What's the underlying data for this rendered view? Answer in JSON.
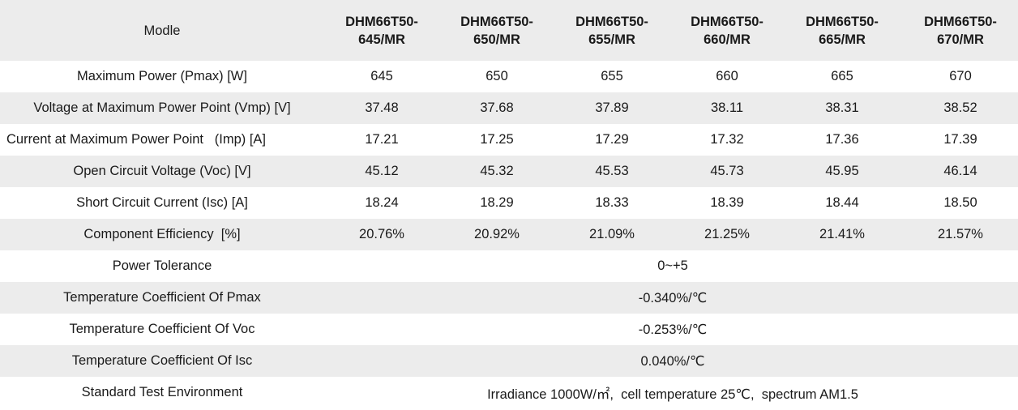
{
  "header": {
    "label": "Modle",
    "models": [
      {
        "line1": "DHM66T50-",
        "line2": "645/MR"
      },
      {
        "line1": "DHM66T50-",
        "line2": "650/MR"
      },
      {
        "line1": "DHM66T50-",
        "line2": "655/MR"
      },
      {
        "line1": "DHM66T50-",
        "line2": "660/MR"
      },
      {
        "line1": "DHM66T50-",
        "line2": "665/MR"
      },
      {
        "line1": "DHM66T50-",
        "line2": "670/MR"
      }
    ]
  },
  "rows": [
    {
      "label": "Maximum Power (Pmax) [W]",
      "values": [
        "645",
        "650",
        "655",
        "660",
        "665",
        "670"
      ]
    },
    {
      "label": "Voltage at Maximum Power Point (Vmp) [V]",
      "values": [
        "37.48",
        "37.68",
        "37.89",
        "38.11",
        "38.31",
        "38.52"
      ]
    },
    {
      "label": "Current at Maximum Power Point   (Imp) [A]",
      "values": [
        "17.21",
        "17.25",
        "17.29",
        "17.32",
        "17.36",
        "17.39"
      ]
    },
    {
      "label": "Open Circuit Voltage (Voc) [V]",
      "values": [
        "45.12",
        "45.32",
        "45.53",
        "45.73",
        "45.95",
        "46.14"
      ]
    },
    {
      "label": "Short Circuit Current (Isc) [A]",
      "values": [
        "18.24",
        "18.29",
        "18.33",
        "18.39",
        "18.44",
        "18.50"
      ]
    },
    {
      "label": "Component Efficiency  [%]",
      "values": [
        "20.76%",
        "20.92%",
        "21.09%",
        "21.25%",
        "21.41%",
        "21.57%"
      ]
    }
  ],
  "merged_rows": [
    {
      "label": "Power Tolerance",
      "value": "0~+5"
    },
    {
      "label": "Temperature Coefficient Of Pmax",
      "value": "-0.340%/℃"
    },
    {
      "label": "Temperature Coefficient Of Voc",
      "value": "-0.253%/℃"
    },
    {
      "label": "Temperature Coefficient Of Isc",
      "value": "0.040%/℃"
    },
    {
      "label": "Standard Test Environment",
      "value": "Irradiance 1000W/㎡,  cell temperature 25℃,  spectrum AM1.5"
    }
  ]
}
